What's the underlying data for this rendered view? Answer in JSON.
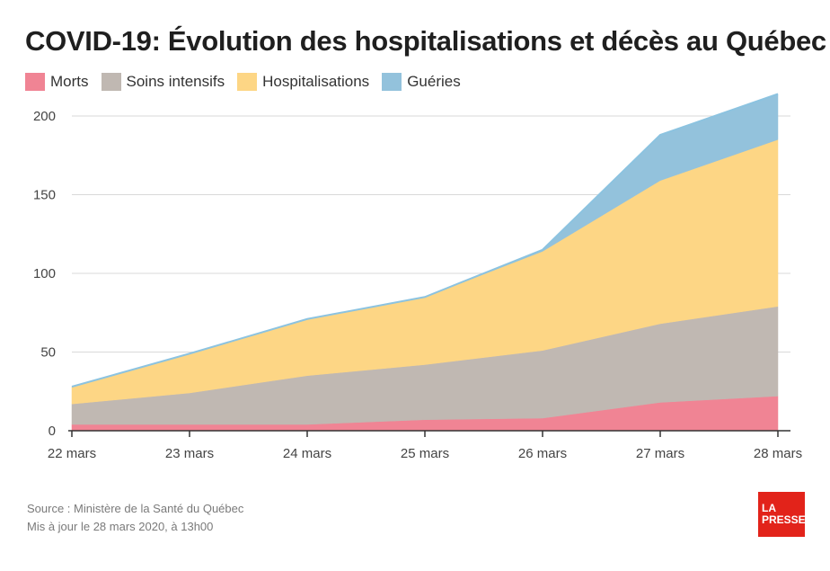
{
  "header": {
    "title": "COVID-19: Évolution des hospitalisations et décès au Québec"
  },
  "legend": [
    {
      "label": "Morts",
      "color": "#f08494"
    },
    {
      "label": "Soins intensifs",
      "color": "#c0b8b2"
    },
    {
      "label": "Hospitalisations",
      "color": "#fdd685"
    },
    {
      "label": "Guéries",
      "color": "#93c2dc"
    }
  ],
  "footer": {
    "source": "Source : Ministère de la Santé du Québec",
    "updated": "Mis à jour le 28 mars 2020, à 13h00"
  },
  "logo": {
    "line1": "LA",
    "line2": "PRESSE"
  },
  "chart_data": {
    "type": "area",
    "stacked": true,
    "categories": [
      "22 mars",
      "23 mars",
      "24 mars",
      "25 mars",
      "26 mars",
      "27 mars",
      "28 mars"
    ],
    "series": [
      {
        "name": "Morts",
        "color": "#f08494",
        "values": [
          4,
          4,
          4,
          7,
          8,
          18,
          22
        ]
      },
      {
        "name": "Soins intensifs",
        "color": "#c0b8b2",
        "values": [
          13,
          20,
          31,
          35,
          43,
          50,
          57
        ]
      },
      {
        "name": "Hospitalisations",
        "color": "#fdd685",
        "values": [
          11,
          25,
          36,
          43,
          63,
          91,
          106
        ]
      },
      {
        "name": "Guéries",
        "color": "#93c2dc",
        "values": [
          0,
          0,
          0,
          0,
          1,
          29,
          29
        ]
      }
    ],
    "yticks": [
      0,
      50,
      100,
      150,
      200
    ],
    "ylim": [
      0,
      200
    ],
    "grid": true,
    "outline_color": "#8cc3e0"
  }
}
